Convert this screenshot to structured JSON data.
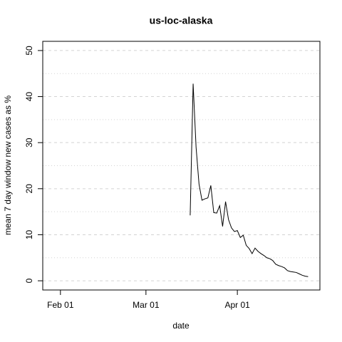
{
  "chart_data": {
    "type": "line",
    "title": "us-loc-alaska",
    "x_label": "date",
    "y_label": "mean  7  day window new cases as %",
    "x": [
      "Mar 16",
      "Mar 17",
      "Mar 18",
      "Mar 19",
      "Mar 20",
      "Mar 21",
      "Mar 22",
      "Mar 23",
      "Mar 24",
      "Mar 25",
      "Mar 26",
      "Mar 27",
      "Mar 28",
      "Mar 29",
      "Mar 30",
      "Mar 31",
      "Apr 01",
      "Apr 02",
      "Apr 03",
      "Apr 04",
      "Apr 05",
      "Apr 06",
      "Apr 07",
      "Apr 08",
      "Apr 09",
      "Apr 10",
      "Apr 11",
      "Apr 12",
      "Apr 13",
      "Apr 14",
      "Apr 15",
      "Apr 16",
      "Apr 17",
      "Apr 18",
      "Apr 19",
      "Apr 20",
      "Apr 21",
      "Apr 22",
      "Apr 23",
      "Apr 24",
      "Apr 25"
    ],
    "values": [
      14.2,
      42.8,
      29,
      21,
      17.5,
      17.8,
      18,
      20.7,
      14.8,
      14.7,
      16.3,
      11.8,
      17.2,
      13.3,
      11.5,
      10.7,
      10.9,
      9.4,
      9.9,
      7.7,
      7.0,
      5.9,
      7.1,
      6.4,
      5.9,
      5.5,
      5.0,
      4.8,
      4.4,
      3.6,
      3.3,
      3.1,
      2.8,
      2.2,
      2.0,
      1.9,
      1.8,
      1.5,
      1.2,
      1.0,
      0.9
    ],
    "color": "#000000",
    "xlim": [
      "Jan 26",
      "Apr 29"
    ],
    "xticks": [
      "Feb 01",
      "Mar 01",
      "Apr 01"
    ],
    "ylim": [
      -2,
      52
    ],
    "yticks": [
      0,
      10,
      20,
      30,
      40,
      50
    ],
    "ygrid_minor": [
      5,
      15,
      25,
      35,
      45
    ],
    "grid": true
  }
}
